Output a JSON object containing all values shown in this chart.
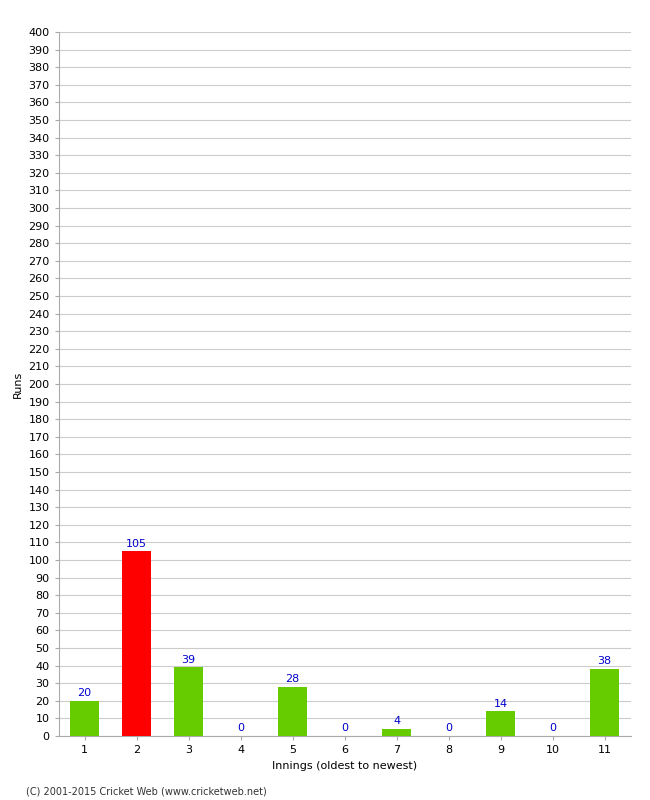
{
  "xlabel": "Innings (oldest to newest)",
  "ylabel": "Runs",
  "categories": [
    1,
    2,
    3,
    4,
    5,
    6,
    7,
    8,
    9,
    10,
    11
  ],
  "values": [
    20,
    105,
    39,
    0,
    28,
    0,
    4,
    0,
    14,
    0,
    38
  ],
  "bar_colors": [
    "#66cc00",
    "#ff0000",
    "#66cc00",
    "#66cc00",
    "#66cc00",
    "#66cc00",
    "#66cc00",
    "#66cc00",
    "#66cc00",
    "#66cc00",
    "#66cc00"
  ],
  "ylim": [
    0,
    400
  ],
  "yticks": [
    0,
    10,
    20,
    30,
    40,
    50,
    60,
    70,
    80,
    90,
    100,
    110,
    120,
    130,
    140,
    150,
    160,
    170,
    180,
    190,
    200,
    210,
    220,
    230,
    240,
    250,
    260,
    270,
    280,
    290,
    300,
    310,
    320,
    330,
    340,
    350,
    360,
    370,
    380,
    390,
    400
  ],
  "label_color": "#0000cc",
  "background_color": "#ffffff",
  "grid_color": "#cccccc",
  "footer": "(C) 2001-2015 Cricket Web (www.cricketweb.net)",
  "label_fontsize": 8,
  "axis_fontsize": 8,
  "tick_fontsize": 8,
  "bar_width": 0.55
}
